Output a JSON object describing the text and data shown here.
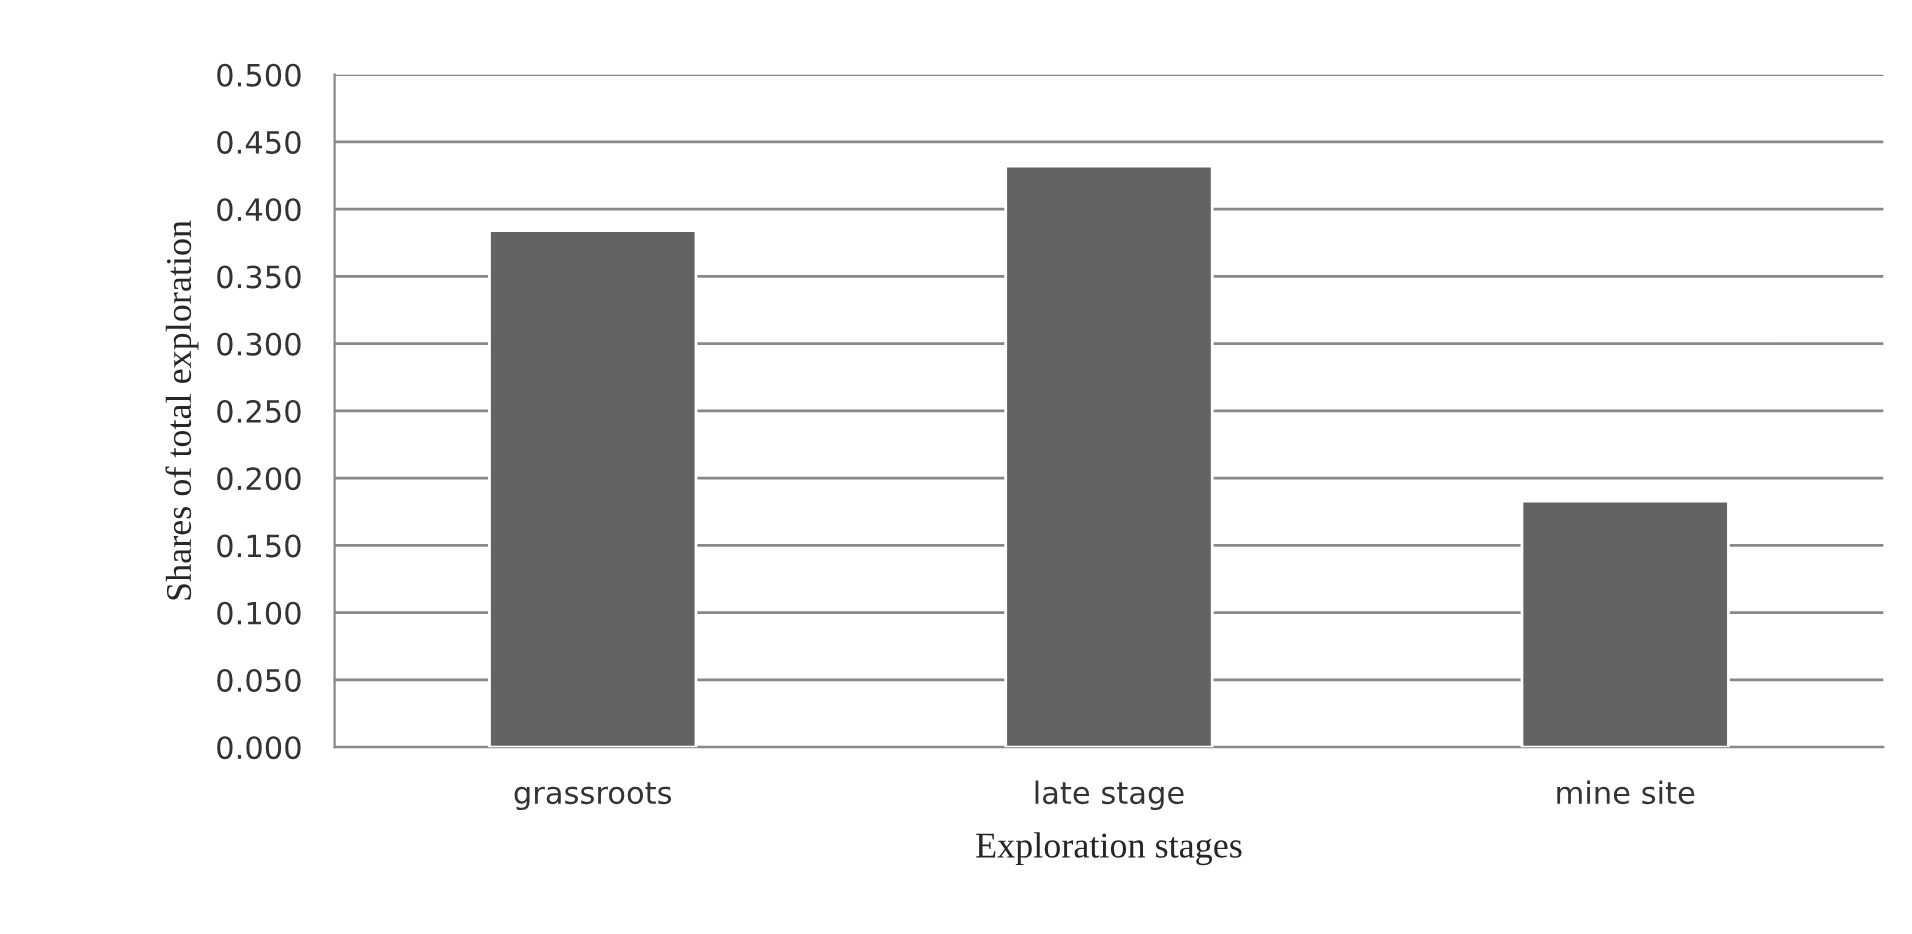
{
  "chart_data": {
    "type": "bar",
    "xlabel": "Exploration stages",
    "ylabel": "Shares of total exploration",
    "categories": [
      "grassroots",
      "late stage",
      "mine site"
    ],
    "values": [
      0.384,
      0.432,
      0.183
    ],
    "color": "#636363",
    "ylim": [
      0,
      0.5
    ],
    "yticks": [
      {
        "value": 0,
        "label": "0.000"
      },
      {
        "value": 0.05,
        "label": "0.050"
      },
      {
        "value": 0.1,
        "label": "0.100"
      },
      {
        "value": 0.15,
        "label": "0.150"
      },
      {
        "value": 0.2,
        "label": "0.200"
      },
      {
        "value": 0.25,
        "label": "0.250"
      },
      {
        "value": 0.3,
        "label": "0.300"
      },
      {
        "value": 0.35,
        "label": "0.350"
      },
      {
        "value": 0.4,
        "label": "0.400"
      },
      {
        "value": 0.45,
        "label": "0.450"
      },
      {
        "value": 0.5,
        "label": "0.500"
      }
    ],
    "grid": "y"
  }
}
